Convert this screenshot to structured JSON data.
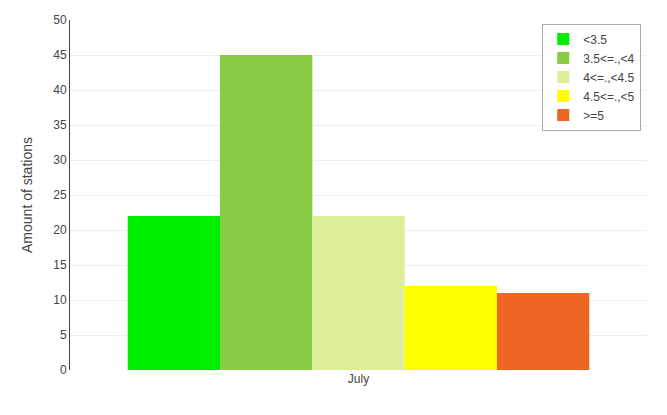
{
  "chart_data": {
    "type": "bar",
    "categories": [
      "July"
    ],
    "series": [
      {
        "name": "<3.5",
        "color": "#00ee00",
        "values": [
          22
        ]
      },
      {
        "name": "3.5<=.,<4",
        "color": "#88cc44",
        "values": [
          45
        ]
      },
      {
        "name": "4<=.,<4.5",
        "color": "#ddee99",
        "values": [
          22
        ]
      },
      {
        "name": "4.5<=.,<5",
        "color": "#ffff00",
        "values": [
          12
        ]
      },
      {
        "name": ">=5",
        "color": "#ee6622",
        "values": [
          11
        ]
      }
    ],
    "ylabel": "Amount of stations",
    "ylim": [
      0,
      50
    ],
    "yticks": [
      0,
      5,
      10,
      15,
      20,
      25,
      30,
      35,
      40,
      45,
      50
    ],
    "grid": true,
    "legend": "upper right"
  }
}
